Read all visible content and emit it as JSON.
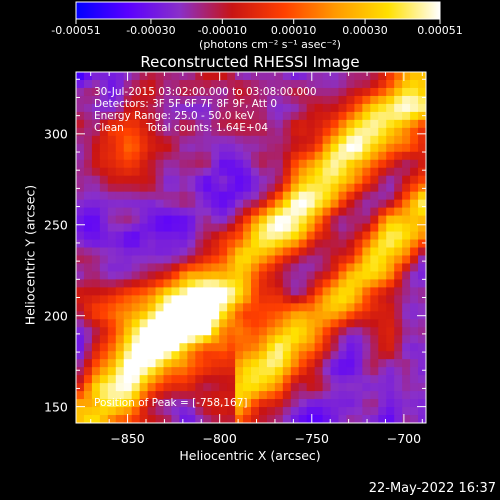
{
  "colorbar": {
    "tick_labels": [
      "-0.00051",
      "-0.00030",
      "-0.00010",
      "0.00010",
      "0.00030",
      "0.00051"
    ],
    "tick_values": [
      -0.00051,
      -0.0003,
      -0.0001,
      0.0001,
      0.0003,
      0.00051
    ],
    "range": [
      -0.00051,
      0.00051
    ],
    "units": "(photons cm⁻² s⁻¹ asec⁻²)",
    "colors": [
      "#0000ff",
      "#5a00ff",
      "#8a30c8",
      "#c81414",
      "#ff4000",
      "#ff9a00",
      "#ffe000",
      "#ffffff"
    ]
  },
  "chart_data": {
    "type": "heatmap",
    "title": "Reconstructed RHESSI Image",
    "xlabel": "Heliocentric X (arcsec)",
    "ylabel": "Heliocentric Y (arcsec)",
    "xlim": [
      -878,
      -688
    ],
    "ylim": [
      141,
      334
    ],
    "x_ticks": [
      -850,
      -800,
      -750,
      -700
    ],
    "y_ticks": [
      150,
      200,
      250,
      300
    ],
    "x_tick_labels": [
      "−850",
      "−800",
      "−750",
      "−700"
    ],
    "y_tick_labels": [
      "150",
      "200",
      "250",
      "300"
    ],
    "peak_position": [
      -758,
      167
    ],
    "annotations": {
      "time_range": "30-Jul-2015 03:02:00.000 to 03:08:00.000",
      "detectors": "Detectors: 3F 5F 6F 7F 8F 9F, Att 0",
      "energy_range": "Energy Range: 25.0 - 50.0 keV",
      "method": "Clean",
      "total_counts": "Total counts: 1.64E+04",
      "peak": "Position of Peak = [-758,167]"
    },
    "grid": false
  },
  "timestamp": "22-May-2022 16:37"
}
